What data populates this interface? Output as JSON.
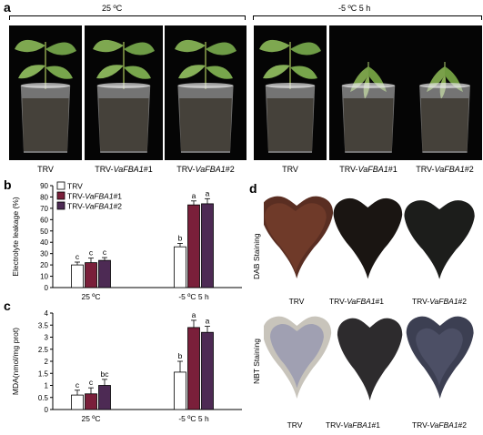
{
  "panel_a": {
    "letter": "a",
    "condition_left": "25 ºC",
    "condition_right": "-5 ºC 5 h",
    "captions": [
      "TRV",
      "TRV-VaFBA1#1",
      "TRV-VaFBA1#2",
      "TRV",
      "TRV-VaFBA1#1",
      "TRV-VaFBA1#2"
    ]
  },
  "panel_b": {
    "letter": "b"
  },
  "panel_c": {
    "letter": "c"
  },
  "panel_d": {
    "letter": "d",
    "dab_label": "DAB Staining",
    "nbt_label": "NBT Staining",
    "captions": [
      "TRV",
      "TRV-VaFBA1#1",
      "TRV-VaFBA1#2"
    ]
  },
  "colors": {
    "trv": "#ffffff",
    "line1": "#7a1f3a",
    "line2": "#4d2a54"
  },
  "chart_data": [
    {
      "type": "bar",
      "ylabel": "Electrolyte leakage (%)",
      "ylim": [
        0,
        90
      ],
      "yticks": [
        0,
        10,
        20,
        30,
        40,
        50,
        60,
        70,
        80,
        90
      ],
      "categories": [
        "25 ºC",
        "-5 ºC 5 h"
      ],
      "legend_position": "top-left",
      "series": [
        {
          "name": "TRV",
          "values": [
            20,
            36
          ],
          "errors": [
            2.5,
            3
          ],
          "letters": [
            "c",
            "b"
          ]
        },
        {
          "name": "TRV-VaFBA1#1",
          "values": [
            22,
            73
          ],
          "errors": [
            4,
            3.5
          ],
          "letters": [
            "c",
            "a"
          ]
        },
        {
          "name": "TRV-VaFBA1#2",
          "values": [
            24,
            74
          ],
          "errors": [
            2.5,
            4.5
          ],
          "letters": [
            "c",
            "a"
          ]
        }
      ]
    },
    {
      "type": "bar",
      "ylabel": "MDA(nmol/mg prot)",
      "ylim": [
        0,
        4
      ],
      "yticks": [
        0,
        0.5,
        1,
        1.5,
        2,
        2.5,
        3,
        3.5,
        4
      ],
      "categories": [
        "25 ºC",
        "-5 ºC 5 h"
      ],
      "series": [
        {
          "name": "TRV",
          "values": [
            0.6,
            1.55
          ],
          "errors": [
            0.2,
            0.45
          ],
          "letters": [
            "c",
            "b"
          ]
        },
        {
          "name": "TRV-VaFBA1#1",
          "values": [
            0.65,
            3.4
          ],
          "errors": [
            0.25,
            0.3
          ],
          "letters": [
            "c",
            "a"
          ]
        },
        {
          "name": "TRV-VaFBA1#2",
          "values": [
            1.0,
            3.2
          ],
          "errors": [
            0.25,
            0.25
          ],
          "letters": [
            "bc",
            "a"
          ]
        }
      ]
    }
  ]
}
